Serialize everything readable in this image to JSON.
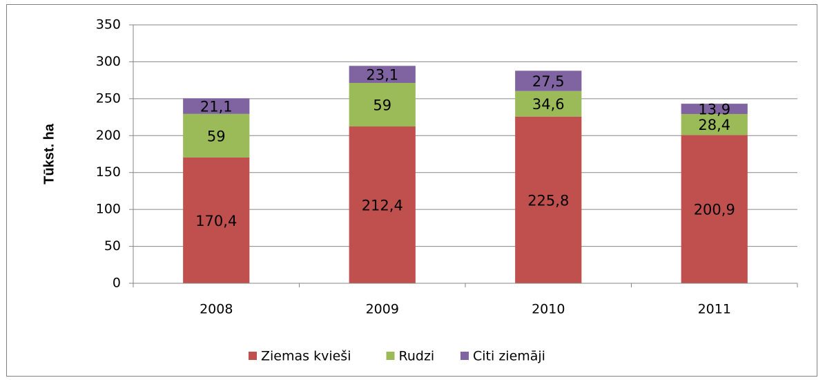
{
  "chart_data": {
    "type": "stacked_bar",
    "y_label": "Tūkst. ha",
    "categories": [
      "2008",
      "2009",
      "2010",
      "2011"
    ],
    "series": [
      {
        "name": "Ziemas kvieši",
        "color": "#c0504d",
        "values": [
          170.4,
          212.4,
          225.8,
          200.9
        ],
        "value_labels": [
          "170,4",
          "212,4",
          "225,8",
          "200,9"
        ]
      },
      {
        "name": "Rudzi",
        "color": "#9bbb59",
        "values": [
          59,
          59,
          34.6,
          28.4
        ],
        "value_labels": [
          "59",
          "59",
          "34,6",
          "28,4"
        ]
      },
      {
        "name": "Citi ziemāji",
        "color": "#8064a2",
        "values": [
          21.1,
          23.1,
          27.5,
          13.9
        ],
        "value_labels": [
          "21,1",
          "23,1",
          "27,5",
          "13,9"
        ]
      }
    ],
    "ylim": [
      0,
      350
    ],
    "yticks": [
      0,
      50,
      100,
      150,
      200,
      250,
      300,
      350
    ],
    "grid": true,
    "legend": "bottom"
  }
}
